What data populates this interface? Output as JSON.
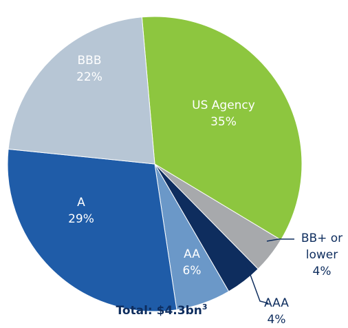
{
  "chart_data": {
    "type": "pie",
    "categories": [
      "US Agency",
      "BB+ or lower",
      "AAA",
      "AA",
      "A",
      "BBB"
    ],
    "values": [
      35,
      4,
      4,
      6,
      29,
      22
    ],
    "value_labels": [
      "35%",
      "4%",
      "4%",
      "6%",
      "29%",
      "22%"
    ],
    "colors": [
      "#8dc63f",
      "#a7a9ac",
      "#0e2d5e",
      "#6b98c8",
      "#1f5ca8",
      "#b7c6d5"
    ],
    "label_colors": [
      "#ffffff",
      "#0e2d5e",
      "#0e2d5e",
      "#ffffff",
      "#ffffff",
      "#ffffff"
    ],
    "startangle": -5,
    "total": "Total: $4.3bn",
    "total_footnote": "3"
  }
}
